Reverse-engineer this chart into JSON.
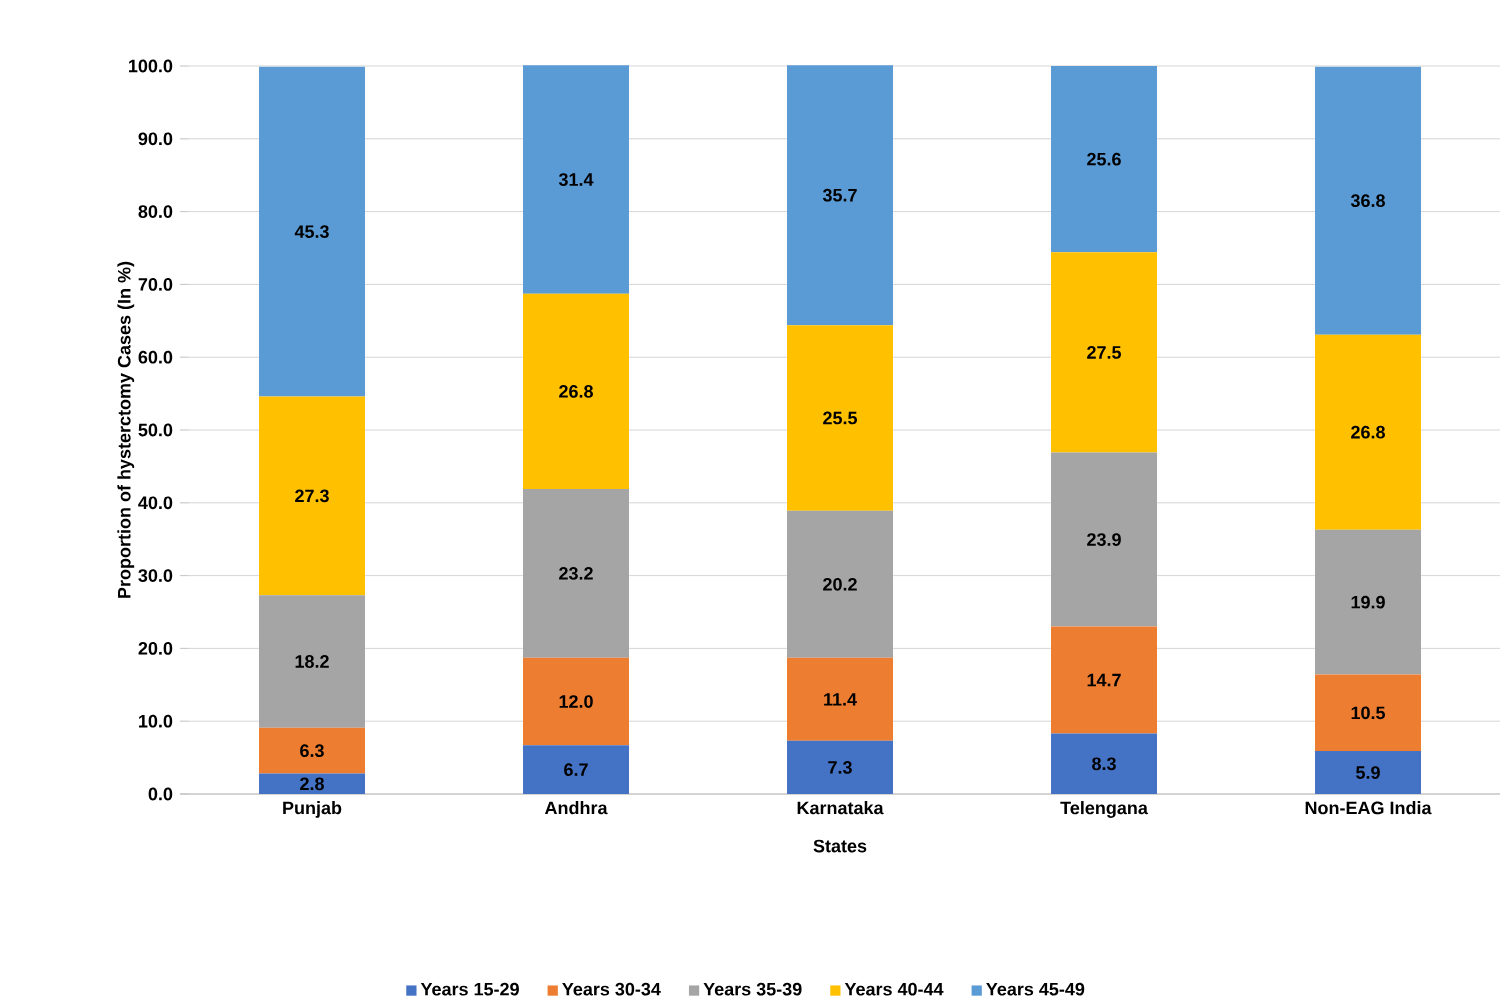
{
  "chart_data": {
    "type": "bar",
    "stacked": true,
    "xlabel": "States",
    "ylabel": "Proportion of hysterctomy Cases (In %)",
    "categories": [
      "Punjab",
      "Andhra",
      "Karnataka",
      "Telengana",
      "Non-EAG India"
    ],
    "series": [
      {
        "name": "Years 15-29",
        "color": "#4472c4",
        "values": [
          2.8,
          6.7,
          7.3,
          8.3,
          5.9
        ],
        "value_labels": [
          "2.8",
          "6.7",
          "7.3",
          "8.3",
          "5.9"
        ]
      },
      {
        "name": "Years 30-34",
        "color": "#ed7d31",
        "values": [
          6.3,
          12.0,
          11.4,
          14.7,
          10.5
        ],
        "value_labels": [
          "6.3",
          "12.0",
          "11.4",
          "14.7",
          "10.5"
        ]
      },
      {
        "name": "Years 35-39",
        "color": "#a5a5a5",
        "values": [
          18.2,
          23.2,
          20.2,
          23.9,
          19.9
        ],
        "value_labels": [
          "18.2",
          "23.2",
          "20.2",
          "23.9",
          "19.9"
        ]
      },
      {
        "name": "Years 40-44",
        "color": "#ffc000",
        "values": [
          27.3,
          26.8,
          25.5,
          27.5,
          26.8
        ],
        "value_labels": [
          "27.3",
          "26.8",
          "25.5",
          "27.5",
          "26.8"
        ]
      },
      {
        "name": "Years 45-49",
        "color": "#5b9bd5",
        "values": [
          45.3,
          31.4,
          35.7,
          25.6,
          36.8
        ],
        "value_labels": [
          "45.3",
          "31.4",
          "35.7",
          "25.6",
          "36.8"
        ]
      }
    ],
    "ylim": [
      0,
      100
    ],
    "yticks": [
      {
        "value": 0,
        "label": "0.0"
      },
      {
        "value": 10,
        "label": "10.0"
      },
      {
        "value": 20,
        "label": "20.0"
      },
      {
        "value": 30,
        "label": "30.0"
      },
      {
        "value": 40,
        "label": "40.0"
      },
      {
        "value": 50,
        "label": "50.0"
      },
      {
        "value": 60,
        "label": "60.0"
      },
      {
        "value": 70,
        "label": "70.0"
      },
      {
        "value": 80,
        "label": "80.0"
      },
      {
        "value": 90,
        "label": "90.0"
      },
      {
        "value": 100,
        "label": "100.0"
      }
    ],
    "grid": "y",
    "legend": "bottom"
  }
}
